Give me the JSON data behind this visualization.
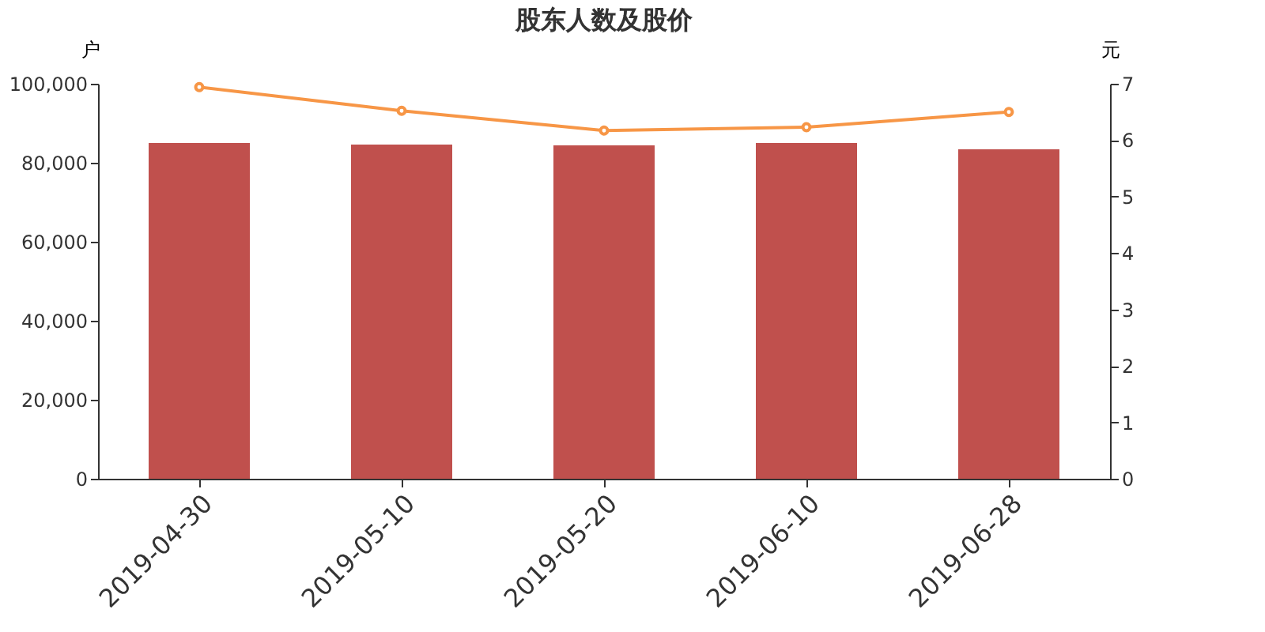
{
  "chart_data": {
    "type": "bar",
    "title": "股东人数及股价",
    "ylabel": "户",
    "y2label": "元",
    "categories": [
      "2019-04-30",
      "2019-05-10",
      "2019-05-20",
      "2019-06-10",
      "2019-06-28"
    ],
    "series": [
      {
        "color": "#c0504d",
        "values": [
          85000,
          84600,
          84400,
          85000,
          83400
        ]
      },
      {
        "type": "line",
        "axis": "y2",
        "color": "#f79646",
        "values": [
          6.94,
          6.52,
          6.17,
          6.23,
          6.5
        ],
        "marker": "circle"
      }
    ],
    "ylim": [
      0,
      100000
    ],
    "yticks": [
      0,
      {
        "value": 20000,
        "label": "20,000"
      },
      {
        "value": 40000,
        "label": "40,000"
      },
      {
        "value": 60000,
        "label": "60,000"
      },
      {
        "value": 80000,
        "label": "80,000"
      },
      {
        "value": 100000,
        "label": "100,000"
      }
    ],
    "y2lim": [
      0,
      7
    ],
    "y2ticks": [
      0,
      1,
      2,
      3,
      4,
      5,
      6,
      7
    ],
    "grid": false
  }
}
